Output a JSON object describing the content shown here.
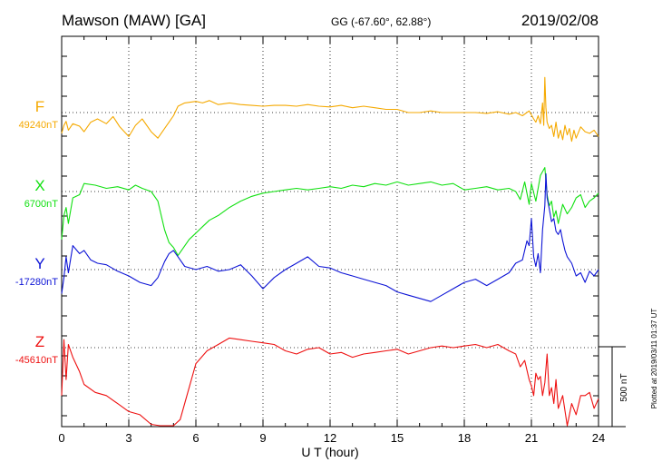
{
  "header": {
    "station": "Mawson (MAW)  [GA]",
    "coords": "GG (-67.60°,  62.88°)",
    "date": "2019/02/08"
  },
  "footer": {
    "plotted": "Plotted at 2019/03/11 01:37  UT"
  },
  "chart_data": {
    "type": "line",
    "xlabel": "U T (hour)",
    "xlim": [
      0,
      24
    ],
    "xticks": [
      "0",
      "3",
      "6",
      "9",
      "12",
      "15",
      "18",
      "21",
      "24"
    ],
    "grid": true,
    "scale_bar": "500 nT",
    "series": [
      {
        "name": "F",
        "baseline_label": "49240nT",
        "color": "#f5a900",
        "x": [
          0,
          0.1,
          0.2,
          0.3,
          0.5,
          0.8,
          1,
          1.3,
          1.6,
          2,
          2.3,
          2.6,
          3,
          3.3,
          3.6,
          4,
          4.3,
          4.6,
          4.8,
          5,
          5.2,
          5.5,
          6,
          6.3,
          6.6,
          7,
          7.5,
          8,
          8.5,
          9,
          9.5,
          10,
          10.5,
          11,
          11.5,
          12,
          12.5,
          13,
          13.5,
          14,
          14.5,
          15,
          15.5,
          16,
          16.5,
          17,
          17.5,
          18,
          18.5,
          19,
          19.5,
          20,
          20.3,
          20.6,
          20.9,
          21.1,
          21.2,
          21.3,
          21.4,
          21.5,
          21.55,
          21.6,
          21.65,
          21.7,
          21.8,
          21.9,
          22,
          22.1,
          22.2,
          22.3,
          22.4,
          22.5,
          22.6,
          22.7,
          22.8,
          22.9,
          23,
          23.2,
          23.4,
          23.6,
          23.8,
          24
        ],
        "y": [
          -130,
          -80,
          -55,
          -110,
          -70,
          -85,
          -120,
          -60,
          -40,
          -70,
          -25,
          -90,
          -150,
          -80,
          -40,
          -120,
          -160,
          -100,
          -60,
          -20,
          40,
          60,
          70,
          60,
          75,
          50,
          60,
          50,
          45,
          40,
          45,
          45,
          40,
          50,
          40,
          35,
          45,
          30,
          40,
          30,
          20,
          20,
          0,
          0,
          10,
          0,
          0,
          0,
          0,
          -5,
          5,
          -10,
          0,
          -20,
          10,
          -40,
          -60,
          -20,
          -70,
          60,
          -80,
          220,
          30,
          -60,
          -100,
          -80,
          -150,
          -60,
          -160,
          -110,
          -170,
          -80,
          -140,
          -100,
          -180,
          -110,
          -160,
          -90,
          -120,
          -130,
          -110,
          -150
        ]
      },
      {
        "name": "X",
        "baseline_label": "6700nT",
        "color": "#11e011",
        "x": [
          0,
          0.1,
          0.2,
          0.3,
          0.5,
          0.8,
          1,
          1.5,
          2,
          2.5,
          3,
          3.3,
          3.6,
          4,
          4.3,
          4.6,
          4.8,
          5,
          5.2,
          5.4,
          5.7,
          6,
          6.3,
          6.6,
          7,
          7.5,
          8,
          8.5,
          9,
          9.5,
          10,
          10.5,
          11,
          11.5,
          12,
          12.5,
          13,
          13.5,
          14,
          14.5,
          15,
          15.5,
          16,
          16.5,
          17,
          17.5,
          18,
          18.5,
          19,
          19.5,
          20,
          20.3,
          20.5,
          20.7,
          20.9,
          21,
          21.2,
          21.4,
          21.6,
          21.7,
          21.8,
          21.9,
          22,
          22.1,
          22.2,
          22.4,
          22.6,
          22.8,
          23,
          23.2,
          23.4,
          23.6,
          23.8,
          24
        ],
        "y": [
          -300,
          -150,
          -100,
          -200,
          -40,
          -20,
          50,
          40,
          20,
          30,
          10,
          40,
          20,
          0,
          -60,
          -240,
          -320,
          -350,
          -400,
          -360,
          -300,
          -260,
          -220,
          -180,
          -150,
          -100,
          -60,
          -30,
          -10,
          0,
          10,
          20,
          10,
          20,
          30,
          20,
          40,
          30,
          50,
          40,
          60,
          40,
          50,
          60,
          40,
          50,
          10,
          20,
          30,
          10,
          20,
          0,
          -50,
          60,
          -80,
          50,
          -60,
          100,
          150,
          -20,
          -90,
          -60,
          -160,
          -120,
          -200,
          -80,
          -140,
          -100,
          -40,
          -20,
          -100,
          -60,
          -40,
          -10
        ]
      },
      {
        "name": "Y",
        "baseline_label": "-17280nT",
        "color": "#0d14d6",
        "x": [
          0,
          0.1,
          0.2,
          0.3,
          0.5,
          0.8,
          1,
          1.3,
          1.6,
          2,
          2.5,
          3,
          3.5,
          4,
          4.3,
          4.6,
          4.8,
          5,
          5.2,
          5.5,
          6,
          6.5,
          7,
          7.5,
          8,
          8.5,
          9,
          9.5,
          10,
          10.5,
          11,
          11.5,
          12,
          12.5,
          13,
          13.5,
          14,
          14.5,
          15,
          15.5,
          16,
          16.5,
          17,
          17.5,
          18,
          18.5,
          19,
          19.5,
          20,
          20.3,
          20.6,
          20.8,
          20.9,
          21,
          21.1,
          21.2,
          21.3,
          21.4,
          21.5,
          21.6,
          21.65,
          21.7,
          21.8,
          21.9,
          22,
          22.1,
          22.2,
          22.3,
          22.4,
          22.5,
          22.6,
          22.8,
          23,
          23.2,
          23.4,
          23.6,
          23.8,
          24
        ],
        "y": [
          -150,
          -50,
          80,
          -20,
          150,
          100,
          120,
          60,
          40,
          30,
          -10,
          -40,
          -80,
          -100,
          -50,
          50,
          100,
          120,
          80,
          20,
          0,
          20,
          -10,
          0,
          30,
          -40,
          -120,
          -50,
          0,
          40,
          80,
          20,
          10,
          -20,
          -40,
          -60,
          -80,
          -100,
          -140,
          -160,
          -180,
          -200,
          -160,
          -120,
          -80,
          -60,
          -100,
          -60,
          -20,
          40,
          60,
          180,
          150,
          320,
          80,
          20,
          100,
          -20,
          250,
          400,
          600,
          450,
          380,
          300,
          320,
          240,
          220,
          250,
          180,
          120,
          80,
          40,
          -40,
          -20,
          -80,
          -10,
          -40,
          0
        ]
      },
      {
        "name": "Z",
        "baseline_label": "-45610nT",
        "color": "#ee1010",
        "x": [
          0,
          0.1,
          0.2,
          0.3,
          0.5,
          0.8,
          1,
          1.5,
          2,
          2.5,
          3,
          3.5,
          4,
          4.4,
          4.7,
          4.9,
          5,
          5.3,
          5.6,
          6,
          6.5,
          7,
          7.5,
          8,
          8.5,
          9,
          9.5,
          10,
          10.5,
          11,
          11.5,
          12,
          12.5,
          13,
          13.5,
          14,
          14.5,
          15,
          15.5,
          16,
          16.5,
          17,
          17.5,
          18,
          18.5,
          19,
          19.5,
          20,
          20.3,
          20.5,
          20.7,
          20.9,
          21,
          21.1,
          21.2,
          21.3,
          21.4,
          21.5,
          21.6,
          21.7,
          21.8,
          21.9,
          22,
          22.1,
          22.2,
          22.4,
          22.6,
          22.8,
          23,
          23.2,
          23.4,
          23.6,
          23.8,
          24
        ],
        "y": [
          -300,
          50,
          -200,
          20,
          -60,
          -150,
          -230,
          -280,
          -300,
          -350,
          -400,
          -420,
          -480,
          -500,
          -620,
          -600,
          -580,
          -450,
          -300,
          -100,
          -20,
          20,
          60,
          50,
          40,
          30,
          20,
          -20,
          -40,
          -10,
          0,
          -40,
          -30,
          -60,
          -40,
          -30,
          -20,
          -10,
          -40,
          -20,
          0,
          10,
          0,
          10,
          20,
          0,
          20,
          -20,
          -40,
          -120,
          -80,
          -200,
          -240,
          -300,
          -160,
          -200,
          -180,
          -300,
          -220,
          -40,
          -300,
          -250,
          -350,
          -200,
          -380,
          -300,
          -500,
          -350,
          -420,
          -300,
          -300,
          -280,
          -380,
          -320
        ]
      }
    ]
  }
}
